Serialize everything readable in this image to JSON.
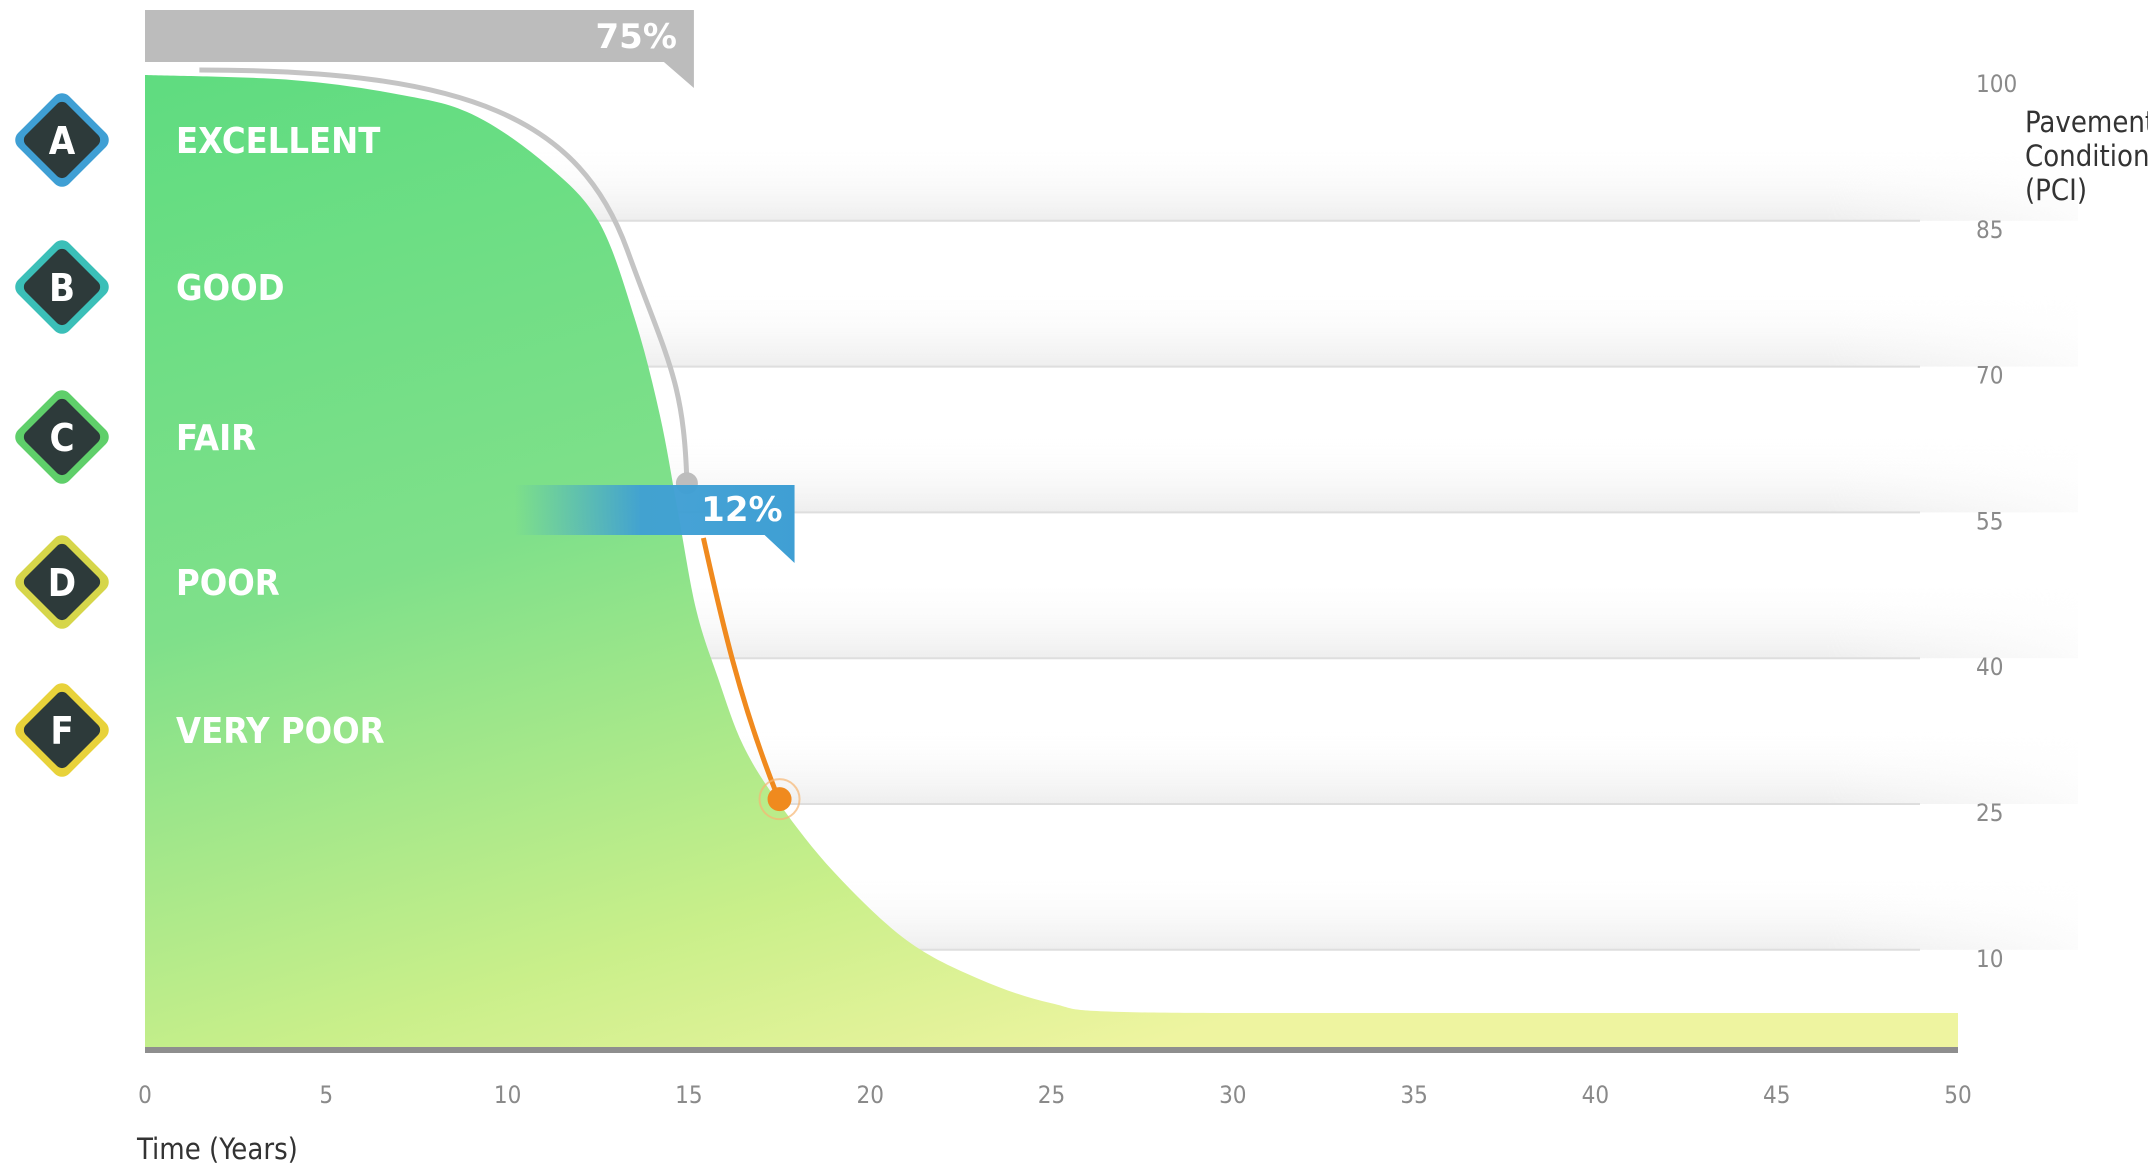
{
  "colors": {
    "green_dark": "#5fdc80",
    "green_light": "#d9f08a",
    "yellow_light": "#fbf6c8",
    "gray_callout": "#bcbcbc",
    "blue_callout": "#3f9fd4",
    "orange_line": "#f08a1e",
    "gray_line": "#c4c4c4",
    "badge_dark": "#2d3a3a"
  },
  "grades": [
    {
      "letter": "A",
      "label": "EXCELLENT",
      "ring_color": "#3f9fd4"
    },
    {
      "letter": "B",
      "label": "GOOD",
      "ring_color": "#3bbfb8"
    },
    {
      "letter": "C",
      "label": "FAIR",
      "ring_color": "#5fcf6a"
    },
    {
      "letter": "D",
      "label": "POOR",
      "ring_color": "#d6d64a"
    },
    {
      "letter": "F",
      "label": "VERY POOR",
      "ring_color": "#e8d23a"
    }
  ],
  "chart_data": {
    "type": "area",
    "xlabel": "Time (Years)",
    "ylabel": "Pavement Condition (PCI)",
    "xlim": [
      0,
      50
    ],
    "ylim": [
      0,
      100
    ],
    "x_ticks": [
      0,
      5,
      10,
      15,
      20,
      25,
      30,
      35,
      40,
      45,
      50
    ],
    "y_ticks": [
      100,
      85,
      70,
      55,
      40,
      25,
      10
    ],
    "grid": "horizontal",
    "series": [
      {
        "values": [
          [
            0,
            100
          ],
          [
            4,
            99.5
          ],
          [
            7,
            98
          ],
          [
            9,
            96
          ],
          [
            11,
            91
          ],
          [
            12.5,
            85
          ],
          [
            13.5,
            75
          ],
          [
            14.2,
            65
          ],
          [
            14.7,
            55
          ],
          [
            15.2,
            45
          ],
          [
            15.8,
            38
          ],
          [
            16.5,
            31
          ],
          [
            17.5,
            25
          ],
          [
            19,
            18
          ],
          [
            21,
            11
          ],
          [
            23,
            7
          ],
          [
            25,
            4.5
          ],
          [
            27,
            3.6
          ],
          [
            35,
            3.5
          ],
          [
            50,
            3.5
          ]
        ]
      }
    ],
    "annotations": [
      {
        "text": "75%",
        "x": 15
      },
      {
        "text": "12%",
        "x": 17.5
      }
    ]
  }
}
